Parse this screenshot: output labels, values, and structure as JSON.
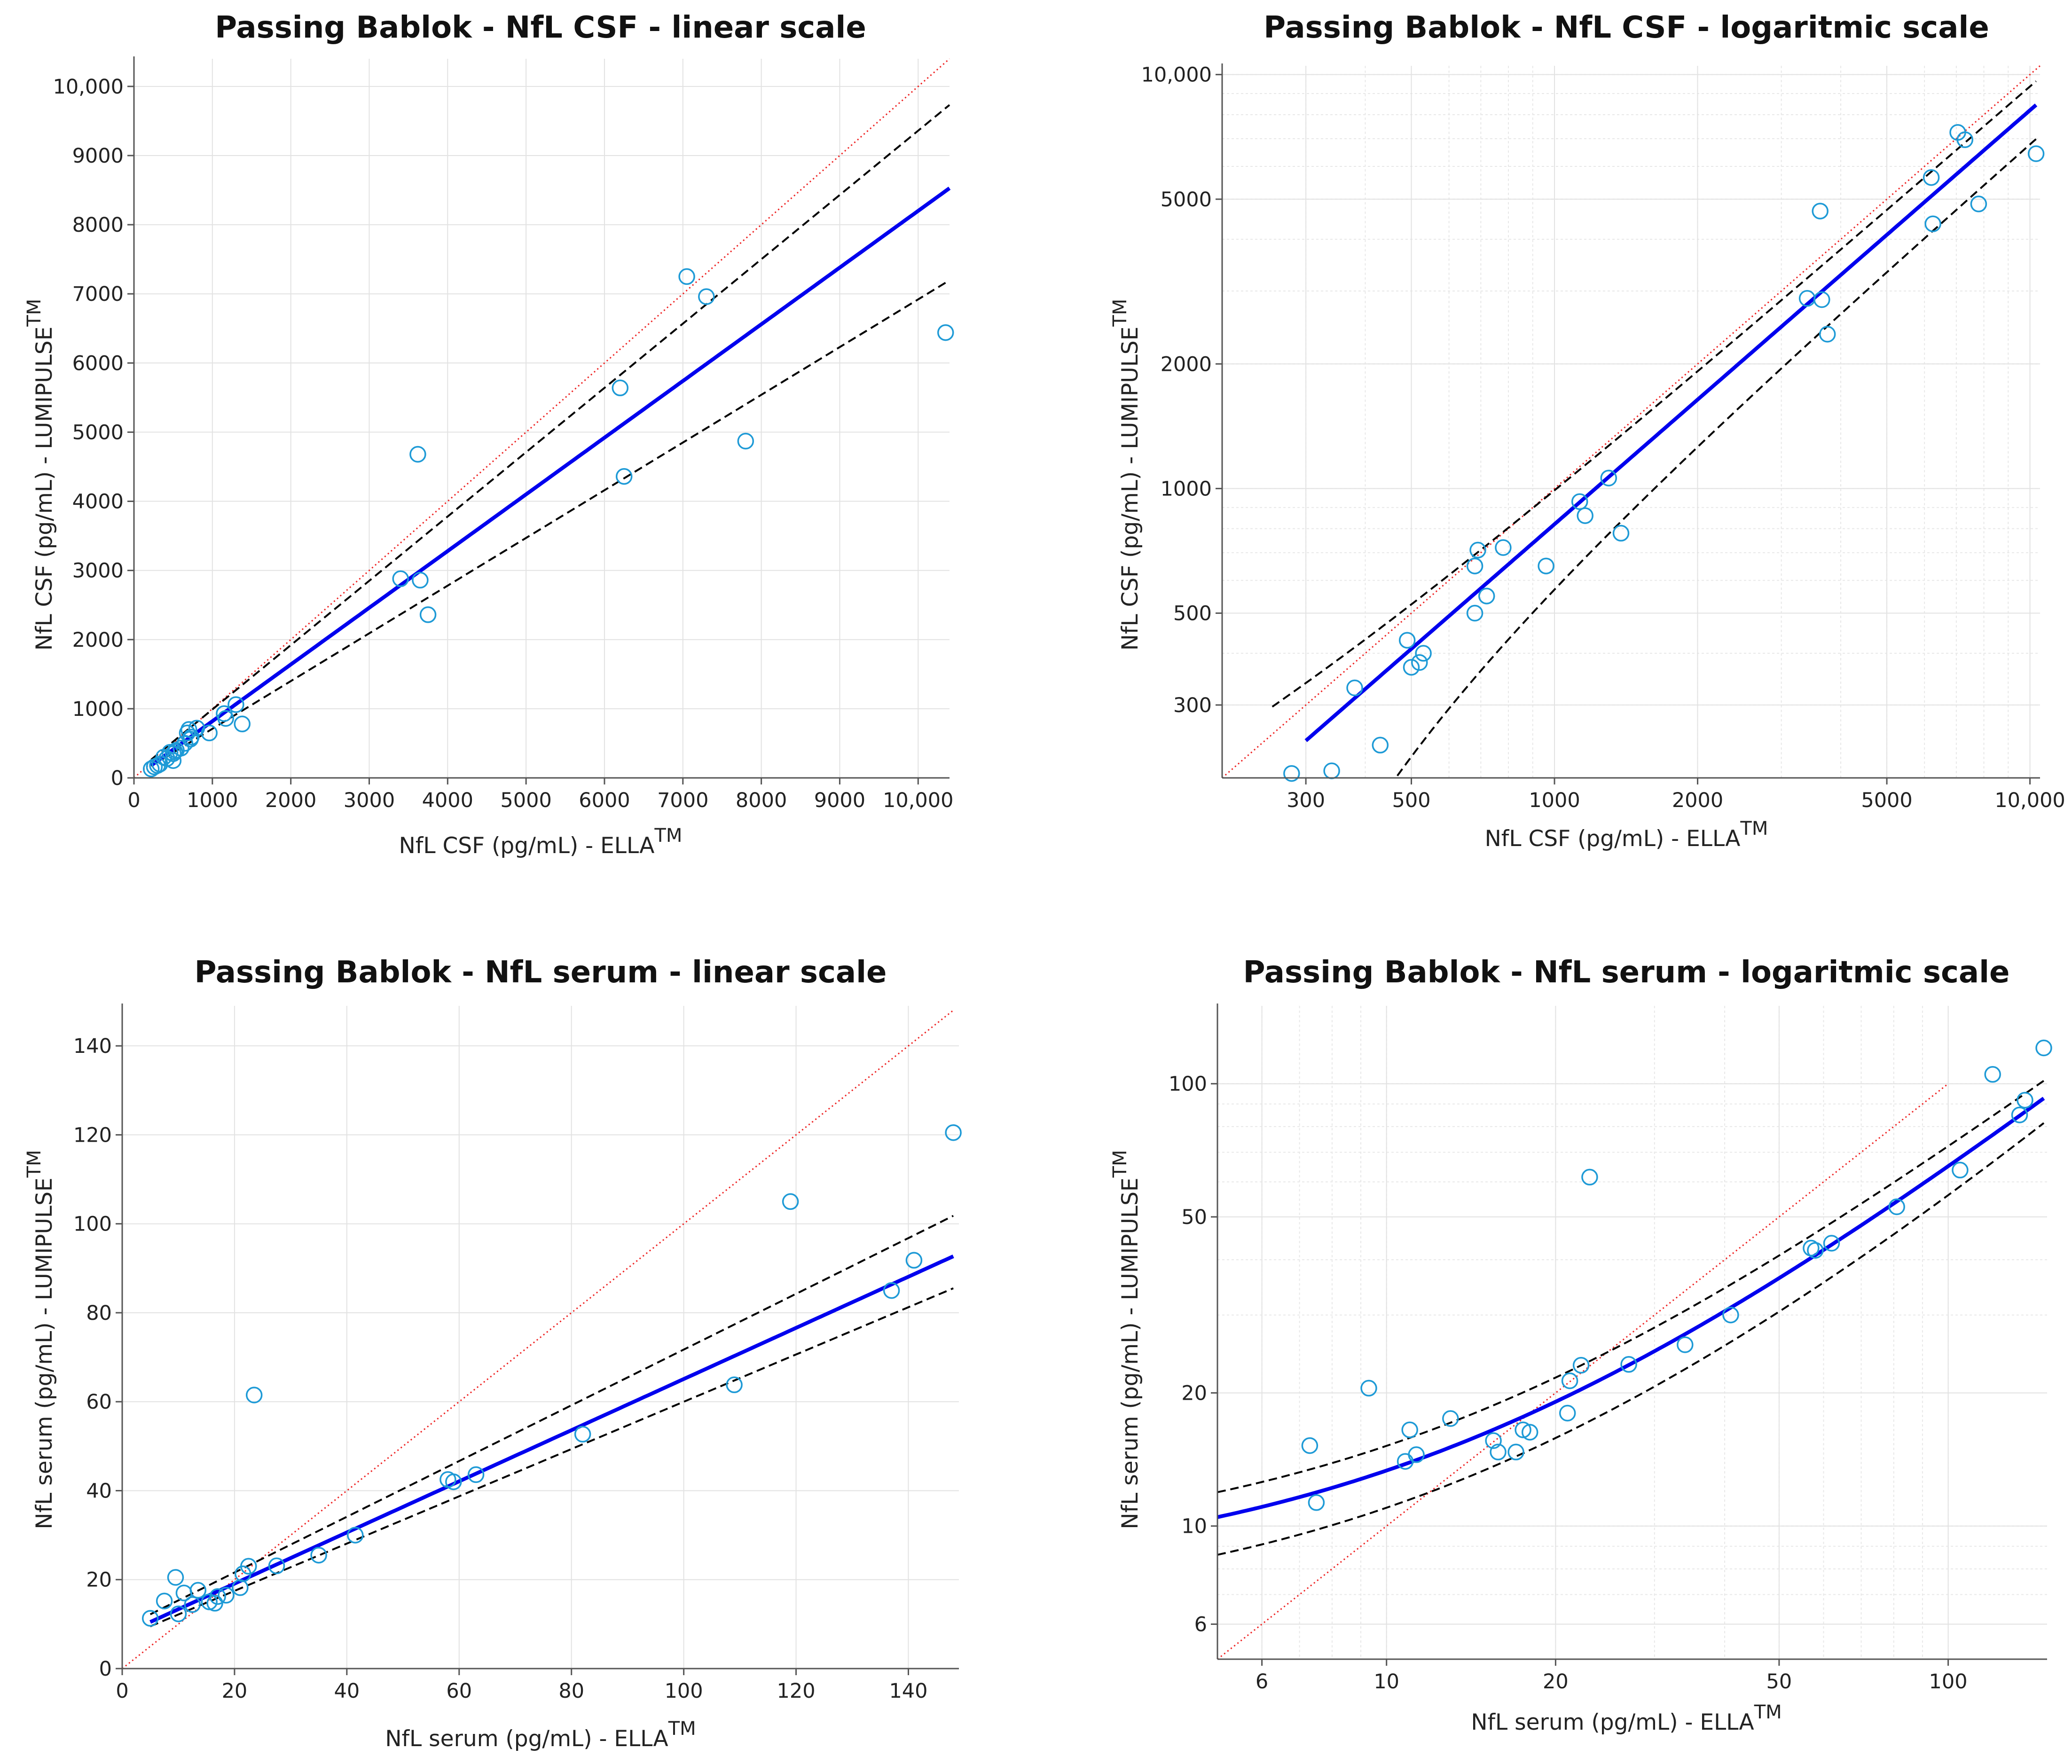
{
  "colors": {
    "regression": "#0000ee",
    "confidence": "#000000",
    "identity": "#ee2222",
    "points": "#1e9ad6",
    "grid": "#e2e2e2"
  },
  "chart_data": [
    {
      "type": "scatter",
      "title": "Passing Bablok - NfL CSF - linear scale",
      "xlabel": "NfL CSF (pg/mL) - ELLA",
      "xlabel_sup": "TM",
      "ylabel": "NfL CSF (pg/mL) - LUMIPULSE",
      "ylabel_sup": "TM",
      "scale": "linear",
      "xlim": [
        0,
        10400
      ],
      "ylim": [
        0,
        10400
      ],
      "xticks": [
        0,
        1000,
        2000,
        3000,
        4000,
        5000,
        6000,
        7000,
        8000,
        9000,
        10000
      ],
      "yticks": [
        0,
        1000,
        2000,
        3000,
        4000,
        5000,
        6000,
        7000,
        8000,
        9000,
        10000
      ],
      "xticklabels": [
        "0",
        "1000",
        "2000",
        "3000",
        "4000",
        "5000",
        "6000",
        "7000",
        "8000",
        "9000",
        "10,000"
      ],
      "yticklabels": [
        "0",
        "1000",
        "2000",
        "3000",
        "4000",
        "5000",
        "6000",
        "7000",
        "8000",
        "9000",
        "10,000"
      ],
      "fit_slope": 0.82,
      "fit_intercept": 0,
      "ci_lower_slope": 0.69,
      "ci_upper_slope": 0.93,
      "identity_range": [
        0,
        10400
      ],
      "fit_range": [
        220,
        10400
      ],
      "points": {
        "x": [
          220,
          260,
          300,
          330,
          380,
          420,
          460,
          500,
          500,
          520,
          540,
          600,
          650,
          680,
          700,
          720,
          730,
          800,
          960,
          1150,
          1170,
          1300,
          1380,
          3400,
          3620,
          3650,
          3750,
          6200,
          6250,
          7050,
          7300,
          7800,
          10350
        ],
        "y": [
          130,
          160,
          180,
          200,
          300,
          280,
          370,
          250,
          350,
          380,
          400,
          430,
          500,
          650,
          700,
          560,
          590,
          720,
          650,
          930,
          860,
          1060,
          780,
          2880,
          4680,
          2860,
          2360,
          5640,
          4360,
          7250,
          6960,
          4870,
          6440
        ]
      }
    },
    {
      "type": "scatter",
      "title": "Passing Bablok - NfL CSF - logaritmic scale",
      "xlabel": "NfL CSF (pg/mL) - ELLA",
      "xlabel_sup": "TM",
      "ylabel": "NfL CSF (pg/mL) - LUMIPULSE",
      "ylabel_sup": "TM",
      "scale": "log",
      "xlim": [
        200,
        10500
      ],
      "ylim": [
        200,
        10500
      ],
      "xticks": [
        300,
        500,
        1000,
        2000,
        5000,
        10000
      ],
      "yticks": [
        300,
        500,
        1000,
        2000,
        5000,
        10000
      ],
      "xticklabels": [
        "300",
        "500",
        "1000",
        "2000",
        "5000",
        "10,000"
      ],
      "yticklabels": [
        "300",
        "500",
        "1000",
        "2000",
        "5000",
        "10,000"
      ],
      "fit_slope": 0.82,
      "fit_intercept": 0,
      "ci_lower_slope": 0.69,
      "ci_upper_slope": 0.93,
      "identity_range": [
        200,
        10500
      ],
      "fit_range": [
        300,
        10300
      ],
      "points": {
        "x": [
          280,
          340,
          380,
          430,
          490,
          500,
          520,
          530,
          680,
          680,
          690,
          720,
          780,
          960,
          1130,
          1160,
          1300,
          1380,
          3400,
          3620,
          3650,
          3750,
          6200,
          6250,
          7050,
          7300,
          7800,
          10300
        ],
        "y": [
          205,
          208,
          330,
          240,
          430,
          370,
          380,
          400,
          650,
          500,
          710,
          550,
          720,
          650,
          930,
          860,
          1060,
          780,
          2880,
          4680,
          2860,
          2360,
          5640,
          4360,
          7250,
          6960,
          4870,
          6440
        ]
      }
    },
    {
      "type": "scatter",
      "title": "Passing Bablok - NfL serum - linear scale",
      "xlabel": "NfL serum (pg/mL) - ELLA",
      "xlabel_sup": "TM",
      "ylabel": "NfL serum (pg/mL) - LUMIPULSE",
      "ylabel_sup": "TM",
      "scale": "linear",
      "xlim": [
        0,
        149
      ],
      "ylim": [
        0,
        149
      ],
      "xticks": [
        0,
        20,
        40,
        60,
        80,
        100,
        120,
        140
      ],
      "yticks": [
        0,
        20,
        40,
        60,
        80,
        100,
        120,
        140
      ],
      "xticklabels": [
        "0",
        "20",
        "40",
        "60",
        "80",
        "100",
        "120",
        "140"
      ],
      "yticklabels": [
        "0",
        "20",
        "40",
        "60",
        "80",
        "100",
        "120",
        "140"
      ],
      "fit_slope": 0.575,
      "fit_intercept": 7.6,
      "ci_lower": {
        "x": [
          5,
          148
        ],
        "y": [
          9.5,
          85.5
        ]
      },
      "ci_upper": {
        "x": [
          5,
          148
        ],
        "y": [
          12.2,
          101.8
        ]
      },
      "identity_range": [
        0,
        148
      ],
      "fit_range": [
        5,
        148
      ],
      "points": {
        "x": [
          5,
          7.5,
          9.5,
          10,
          11,
          12.5,
          13.5,
          15.5,
          16.5,
          17,
          18.5,
          21,
          21.5,
          22.5,
          23.5,
          27.5,
          35,
          41.5,
          58,
          59,
          63,
          82,
          109,
          119,
          137,
          141,
          148
        ],
        "y": [
          11.3,
          15.2,
          20.5,
          12.3,
          17.0,
          14.4,
          17.6,
          15.0,
          14.7,
          16.2,
          16.5,
          18.2,
          21.3,
          23.0,
          61.5,
          23.1,
          25.5,
          30.0,
          42.5,
          42.0,
          43.6,
          52.7,
          63.8,
          105.0,
          85.0,
          91.8,
          120.5
        ]
      }
    },
    {
      "type": "scatter",
      "title": "Passing Bablok - NfL serum - logaritmic scale",
      "xlabel": "NfL serum (pg/mL) - ELLA",
      "xlabel_sup": "TM",
      "ylabel": "NfL serum (pg/mL) - LUMIPULSE",
      "ylabel_sup": "TM",
      "scale": "log",
      "xlim": [
        5,
        150
      ],
      "ylim": [
        5,
        150
      ],
      "xticks": [
        6,
        10,
        20,
        50,
        100
      ],
      "yticks": [
        6,
        10,
        20,
        50,
        100
      ],
      "xticklabels": [
        "6",
        "10",
        "20",
        "50",
        "100"
      ],
      "yticklabels": [
        "6",
        "10",
        "20",
        "50",
        "100"
      ],
      "fit_slope": 0.575,
      "fit_intercept": 7.6,
      "identity_range": [
        5,
        100
      ],
      "fit_range": [
        5,
        148
      ],
      "points": {
        "x": [
          7.3,
          7.5,
          9.3,
          10.8,
          11,
          11.3,
          13,
          15.5,
          15.8,
          17,
          17.5,
          18,
          21,
          21.2,
          22.2,
          23,
          27,
          34,
          41,
          57,
          58,
          62,
          81,
          105,
          120,
          134,
          137,
          148
        ],
        "y": [
          15.2,
          11.3,
          20.5,
          14.0,
          16.5,
          14.5,
          17.5,
          15.6,
          14.7,
          14.7,
          16.5,
          16.3,
          18.0,
          21.3,
          23.1,
          61.5,
          23.2,
          25.7,
          30.0,
          42.5,
          42.0,
          43.6,
          52.7,
          63.8,
          105.0,
          85.0,
          91.8,
          120.5
        ]
      }
    }
  ]
}
